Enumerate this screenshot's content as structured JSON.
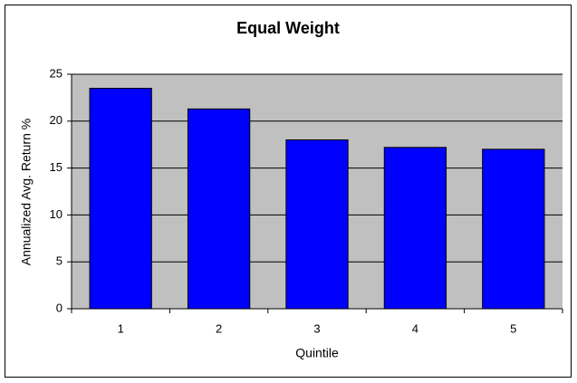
{
  "chart_data": {
    "type": "bar",
    "title": "Equal Weight",
    "x_label": "Quintile",
    "y_label": "Annualized Avg. Return %",
    "categories": [
      "1",
      "2",
      "3",
      "4",
      "5"
    ],
    "values": [
      23.5,
      21.3,
      18.0,
      17.2,
      17.0
    ],
    "color": "#0000ff",
    "ylim": [
      0,
      25
    ],
    "yticks": [
      0,
      5,
      10,
      15,
      20,
      25
    ],
    "grid": true
  }
}
